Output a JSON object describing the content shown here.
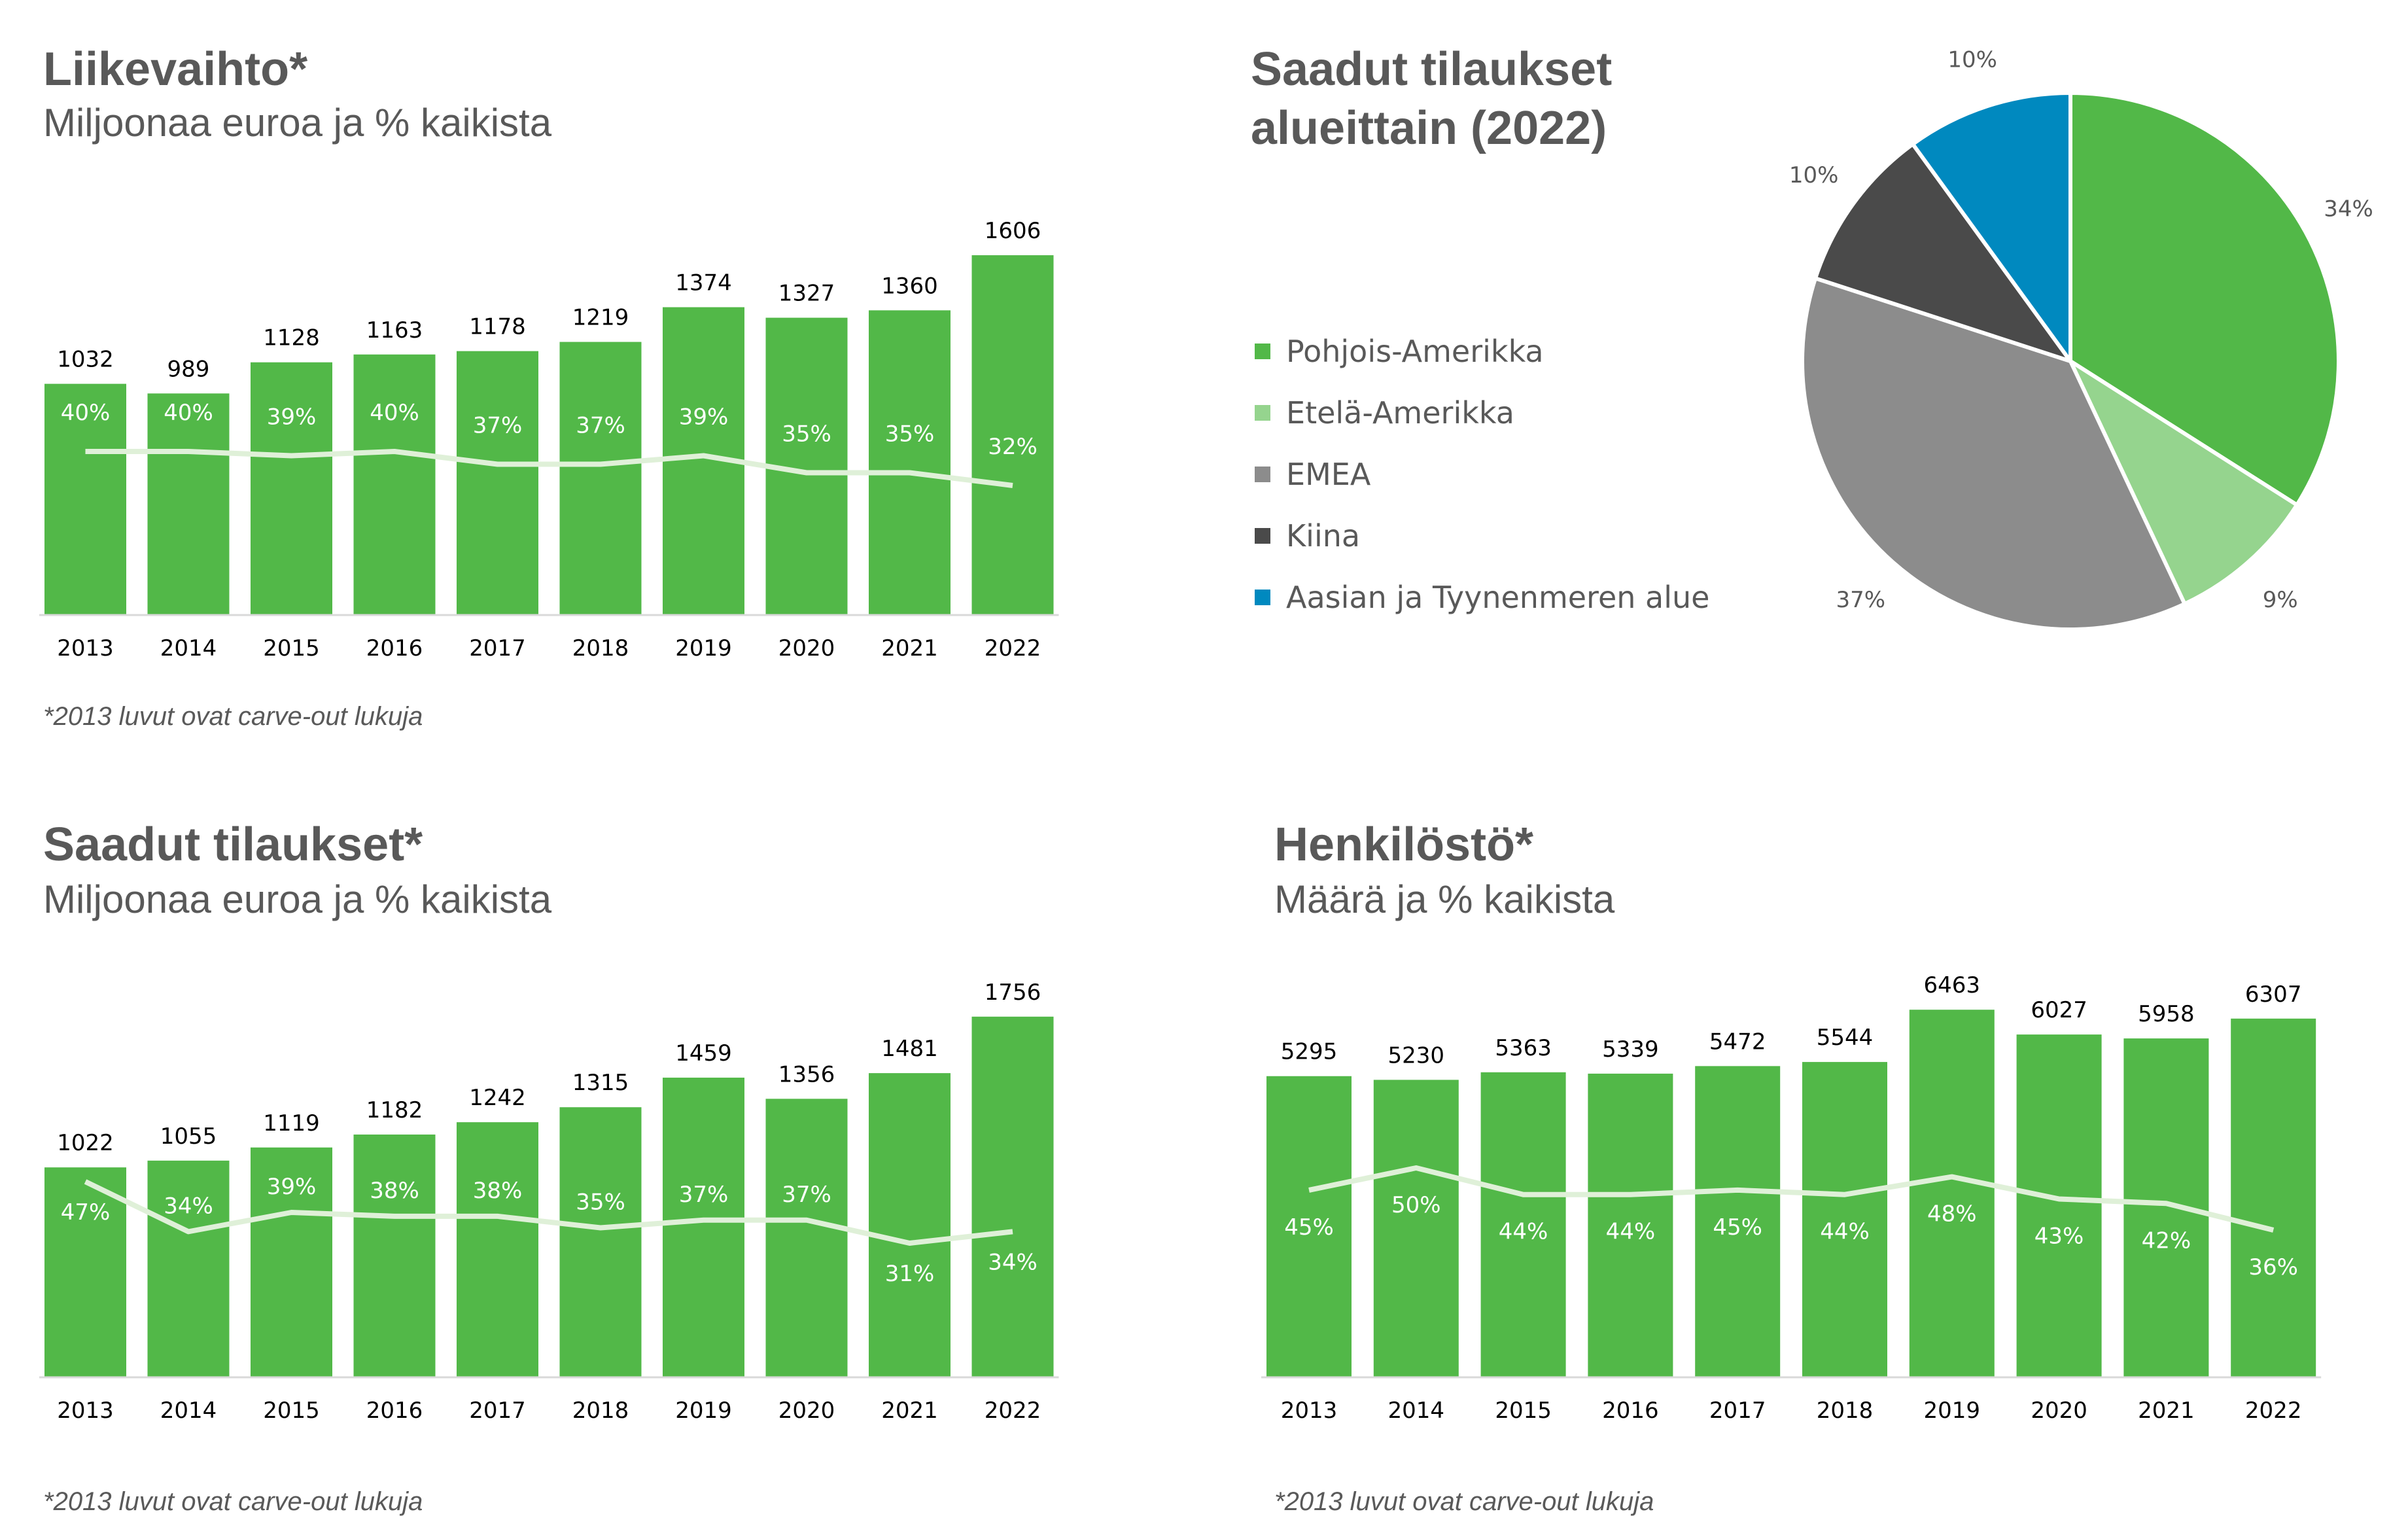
{
  "colors": {
    "bar": "#52b848",
    "line": "#dff0d8",
    "text": "#595959",
    "axis": "#d9d9d9"
  },
  "panels": {
    "revenue": {
      "title": "Liikevaihto*",
      "subtitle": "Miljoonaa euroa ja % kaikista",
      "note": "*2013 luvut ovat carve-out lukuja"
    },
    "orders": {
      "title": "Saadut tilaukset*",
      "subtitle": "Miljoonaa euroa ja % kaikista",
      "note": "*2013 luvut ovat carve-out lukuja"
    },
    "staff": {
      "title": "Henkilöstö*",
      "subtitle": "Määrä ja % kaikista",
      "note": "*2013 luvut ovat carve-out lukuja"
    },
    "regions": {
      "title_line1": "Saadut tilaukset",
      "title_line2": "alueittain (2022)"
    }
  },
  "chart_data": [
    {
      "id": "revenue",
      "type": "bar",
      "categories": [
        "2013",
        "2014",
        "2015",
        "2016",
        "2017",
        "2018",
        "2019",
        "2020",
        "2021",
        "2022"
      ],
      "series": [
        {
          "values": [
            1032,
            989,
            1128,
            1163,
            1178,
            1219,
            1374,
            1327,
            1360,
            1606
          ]
        },
        {
          "values": [
            40,
            40,
            39,
            40,
            37,
            37,
            39,
            35,
            35,
            32
          ],
          "unit": "%"
        }
      ],
      "percent_labels": [
        "40%",
        "40%",
        "39%",
        "40%",
        "37%",
        "37%",
        "39%",
        "35%",
        "35%",
        "32%"
      ],
      "ylim": [
        0,
        1650
      ],
      "percent_ylim": [
        0,
        100
      ]
    },
    {
      "id": "orders",
      "type": "bar",
      "categories": [
        "2013",
        "2014",
        "2015",
        "2016",
        "2017",
        "2018",
        "2019",
        "2020",
        "2021",
        "2022"
      ],
      "series": [
        {
          "values": [
            1022,
            1055,
            1119,
            1182,
            1242,
            1315,
            1459,
            1356,
            1481,
            1756
          ]
        },
        {
          "values": [
            47,
            34,
            39,
            38,
            38,
            35,
            37,
            37,
            31,
            34
          ],
          "unit": "%"
        }
      ],
      "percent_labels": [
        "47%",
        "34%",
        "39%",
        "38%",
        "38%",
        "35%",
        "37%",
        "37%",
        "31%",
        "34%"
      ],
      "ylim": [
        0,
        1800
      ],
      "percent_ylim": [
        0,
        100
      ]
    },
    {
      "id": "staff",
      "type": "bar",
      "categories": [
        "2013",
        "2014",
        "2015",
        "2016",
        "2017",
        "2018",
        "2019",
        "2020",
        "2021",
        "2022"
      ],
      "series": [
        {
          "values": [
            5295,
            5230,
            5363,
            5339,
            5472,
            5544,
            6463,
            6027,
            5958,
            6307
          ]
        },
        {
          "values": [
            45,
            50,
            44,
            44,
            45,
            44,
            48,
            43,
            42,
            36
          ],
          "unit": "%"
        }
      ],
      "percent_labels": [
        "45%",
        "50%",
        "44%",
        "44%",
        "45%",
        "44%",
        "48%",
        "43%",
        "42%",
        "36%"
      ],
      "ylim": [
        0,
        6500
      ],
      "percent_ylim": [
        0,
        100
      ]
    },
    {
      "id": "regions",
      "type": "pie",
      "slices": [
        {
          "label": "Pohjois-Amerikka",
          "value": 34,
          "text": "34%",
          "color": "#52b848"
        },
        {
          "label": "Etelä-Amerikka",
          "value": 9,
          "text": "9%",
          "color": "#95d48e"
        },
        {
          "label": "EMEA",
          "value": 37,
          "text": "37%",
          "color": "#8c8c8c"
        },
        {
          "label": "Kiina",
          "value": 10,
          "text": "10%",
          "color": "#4a4a4a"
        },
        {
          "label": "Aasian ja Tyynenmeren alue",
          "value": 10,
          "text": "10%",
          "color": "#0089bf"
        }
      ]
    }
  ]
}
